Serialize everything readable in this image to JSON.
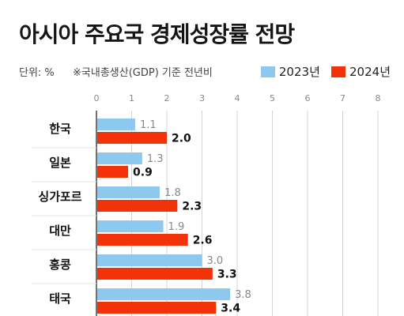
{
  "chart_data": {
    "type": "bar",
    "orientation": "horizontal",
    "title": "아시아 주요국 경제성장률 전망",
    "unit_label": "단위: %",
    "note": "※국내총생산(GDP) 기준 전년비",
    "categories": [
      "한국",
      "일본",
      "싱가포르",
      "대만",
      "홍콩",
      "태국"
    ],
    "series": [
      {
        "name": "2023년",
        "color": "#8dc8ef",
        "label_color": "#888888",
        "values": [
          1.1,
          1.3,
          1.8,
          1.9,
          3.0,
          3.8
        ]
      },
      {
        "name": "2024년",
        "color": "#f2330a",
        "label_color": "#111111",
        "values": [
          2.0,
          0.9,
          2.3,
          2.6,
          3.3,
          3.4
        ]
      }
    ],
    "x_ticks": [
      "0",
      "1",
      "2",
      "3",
      "4",
      "5",
      "6",
      "7",
      "8"
    ],
    "xlim": [
      0,
      8
    ],
    "grid": true,
    "legend_position": "top-right"
  }
}
